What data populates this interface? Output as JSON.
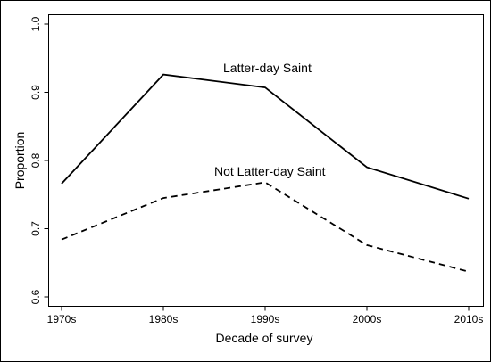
{
  "chart_data": {
    "type": "line",
    "title": "",
    "xlabel": "Decade of survey",
    "ylabel": "Proportion",
    "categories": [
      "1970s",
      "1980s",
      "1990s",
      "2000s",
      "2010s"
    ],
    "yticks": [
      "0.6",
      "0.7",
      "0.8",
      "0.9",
      "1.0"
    ],
    "ylim": [
      0.6,
      1.0
    ],
    "grid": false,
    "legend": "none (series labeled directly on plot)",
    "series": [
      {
        "name": "Latter-day Saint",
        "style": "solid",
        "color": "#000000",
        "values": [
          0.766,
          0.926,
          0.907,
          0.79,
          0.744
        ]
      },
      {
        "name": "Not Latter-day Saint",
        "style": "dashed",
        "color": "#000000",
        "values": [
          0.684,
          0.745,
          0.768,
          0.676,
          0.637
        ]
      }
    ]
  }
}
